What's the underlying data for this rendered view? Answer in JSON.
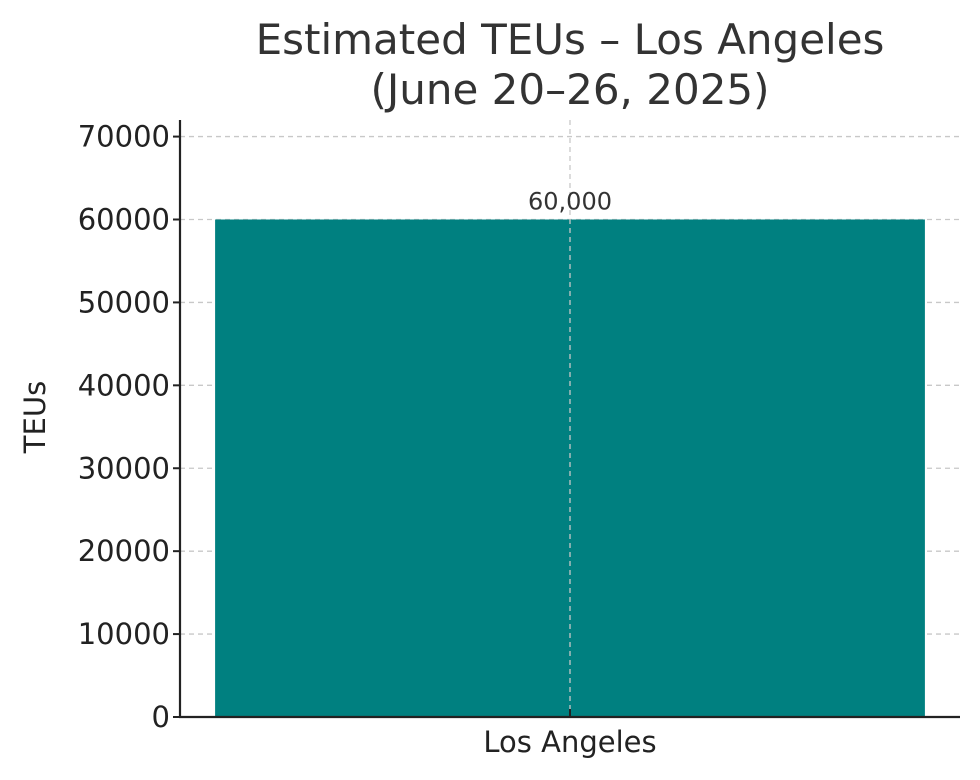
{
  "chart_data": {
    "type": "bar",
    "title_lines": [
      "Estimated TEUs – Los Angeles",
      "(June 20–26, 2025)"
    ],
    "xlabel": "",
    "ylabel": "TEUs",
    "categories": [
      "Los Angeles"
    ],
    "values": [
      60000
    ],
    "data_labels": [
      "60,000"
    ],
    "ylim": [
      0,
      72000
    ],
    "yticks": [
      0,
      10000,
      20000,
      30000,
      40000,
      50000,
      60000,
      70000
    ],
    "ytick_labels": [
      "0",
      "10000",
      "20000",
      "30000",
      "40000",
      "50000",
      "60000",
      "70000"
    ],
    "grid": true,
    "bar_color": "#008080"
  }
}
